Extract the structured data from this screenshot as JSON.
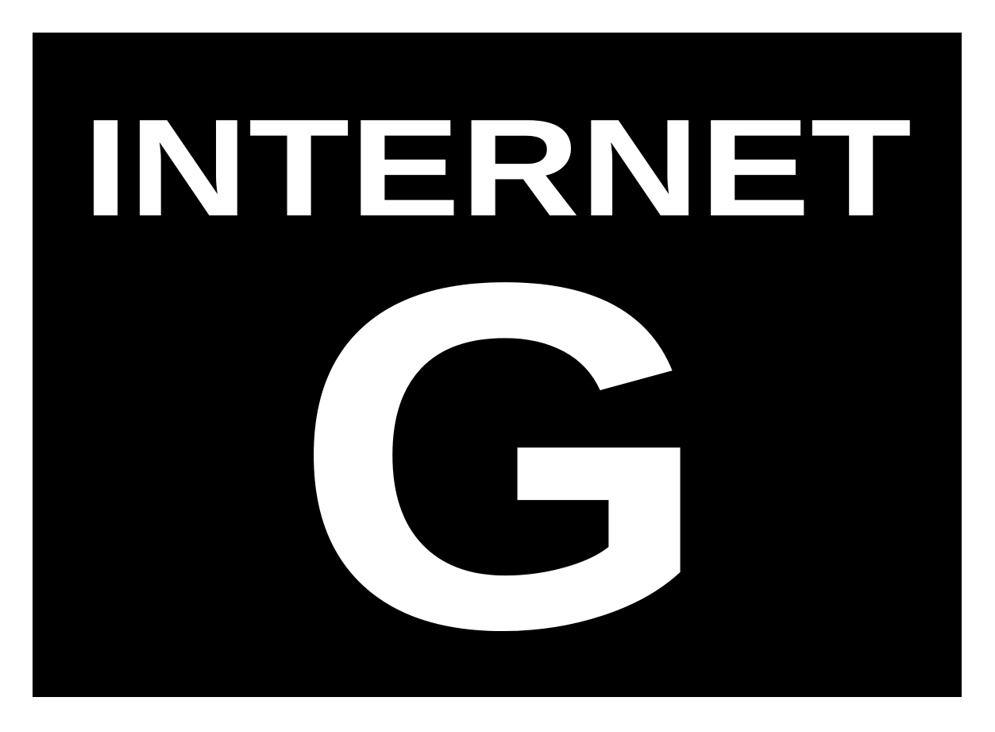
{
  "colors": {
    "page_background": "#ffffff",
    "box_background": "#000000",
    "text": "#ffffff"
  },
  "label": {
    "heading": "INTERNET",
    "rating_letter": "G"
  }
}
